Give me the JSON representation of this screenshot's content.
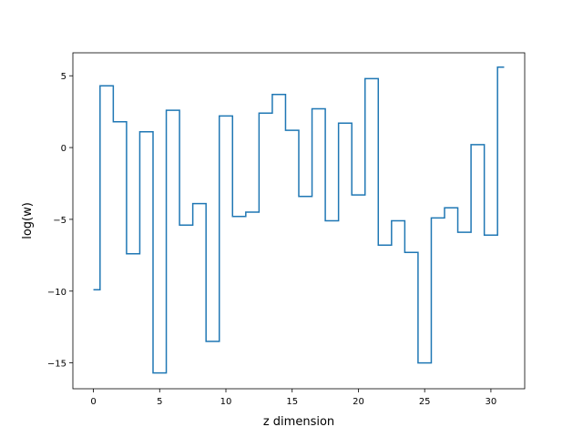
{
  "chart_data": {
    "type": "line",
    "drawstyle": "steps-mid",
    "title": "",
    "xlabel": "z dimension",
    "ylabel": "log(w)",
    "xlim": [
      -1.55,
      32.55
    ],
    "ylim": [
      -16.8,
      6.6
    ],
    "xticks": [
      0,
      5,
      10,
      15,
      20,
      25,
      30
    ],
    "yticks": [
      -15,
      -10,
      -5,
      0,
      5
    ],
    "grid": false,
    "line_color": "#1f77b4",
    "series": [
      {
        "x": [
          0,
          1,
          2,
          3,
          4,
          5,
          6,
          7,
          8,
          9,
          10,
          11,
          12,
          13,
          14,
          15,
          16,
          17,
          18,
          19,
          20,
          21,
          22,
          23,
          24,
          25,
          26,
          27,
          28,
          29,
          30,
          31
        ],
        "values": [
          -9.9,
          4.3,
          1.8,
          -7.4,
          1.1,
          -15.7,
          2.6,
          -5.4,
          -3.9,
          -13.5,
          2.2,
          -4.8,
          -4.5,
          2.4,
          3.7,
          1.2,
          -3.4,
          2.7,
          -5.1,
          1.7,
          -3.3,
          4.8,
          -6.8,
          -5.1,
          -7.3,
          -15.0,
          -4.9,
          -4.2,
          -5.9,
          0.2,
          -6.1,
          5.6
        ]
      }
    ]
  }
}
